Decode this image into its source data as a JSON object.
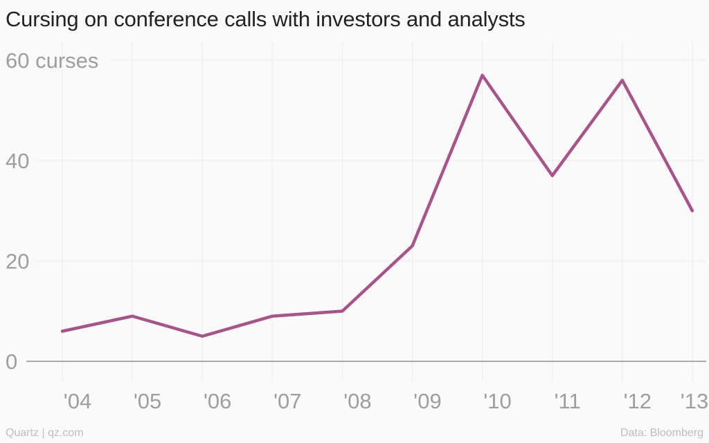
{
  "chart_data": {
    "type": "line",
    "title": "Cursing on conference calls with investors and analysts",
    "ylabel_unit": "curses",
    "categories": [
      "'04",
      "'05",
      "'06",
      "'07",
      "'08",
      "'09",
      "'10",
      "'11",
      "'12",
      "'13"
    ],
    "series": [
      {
        "values": [
          6,
          9,
          5,
          9,
          10,
          23,
          57,
          37,
          56,
          30
        ]
      }
    ],
    "yticks": [
      0,
      20,
      40,
      60
    ],
    "ytick_labels": [
      "0",
      "20",
      "40",
      "60 curses"
    ],
    "ylim": [
      0,
      60
    ],
    "grid": true,
    "line_color": "#a8538a"
  },
  "footer": {
    "source_left": "Quartz | qz.com",
    "source_right": "Data: Bloomberg"
  }
}
